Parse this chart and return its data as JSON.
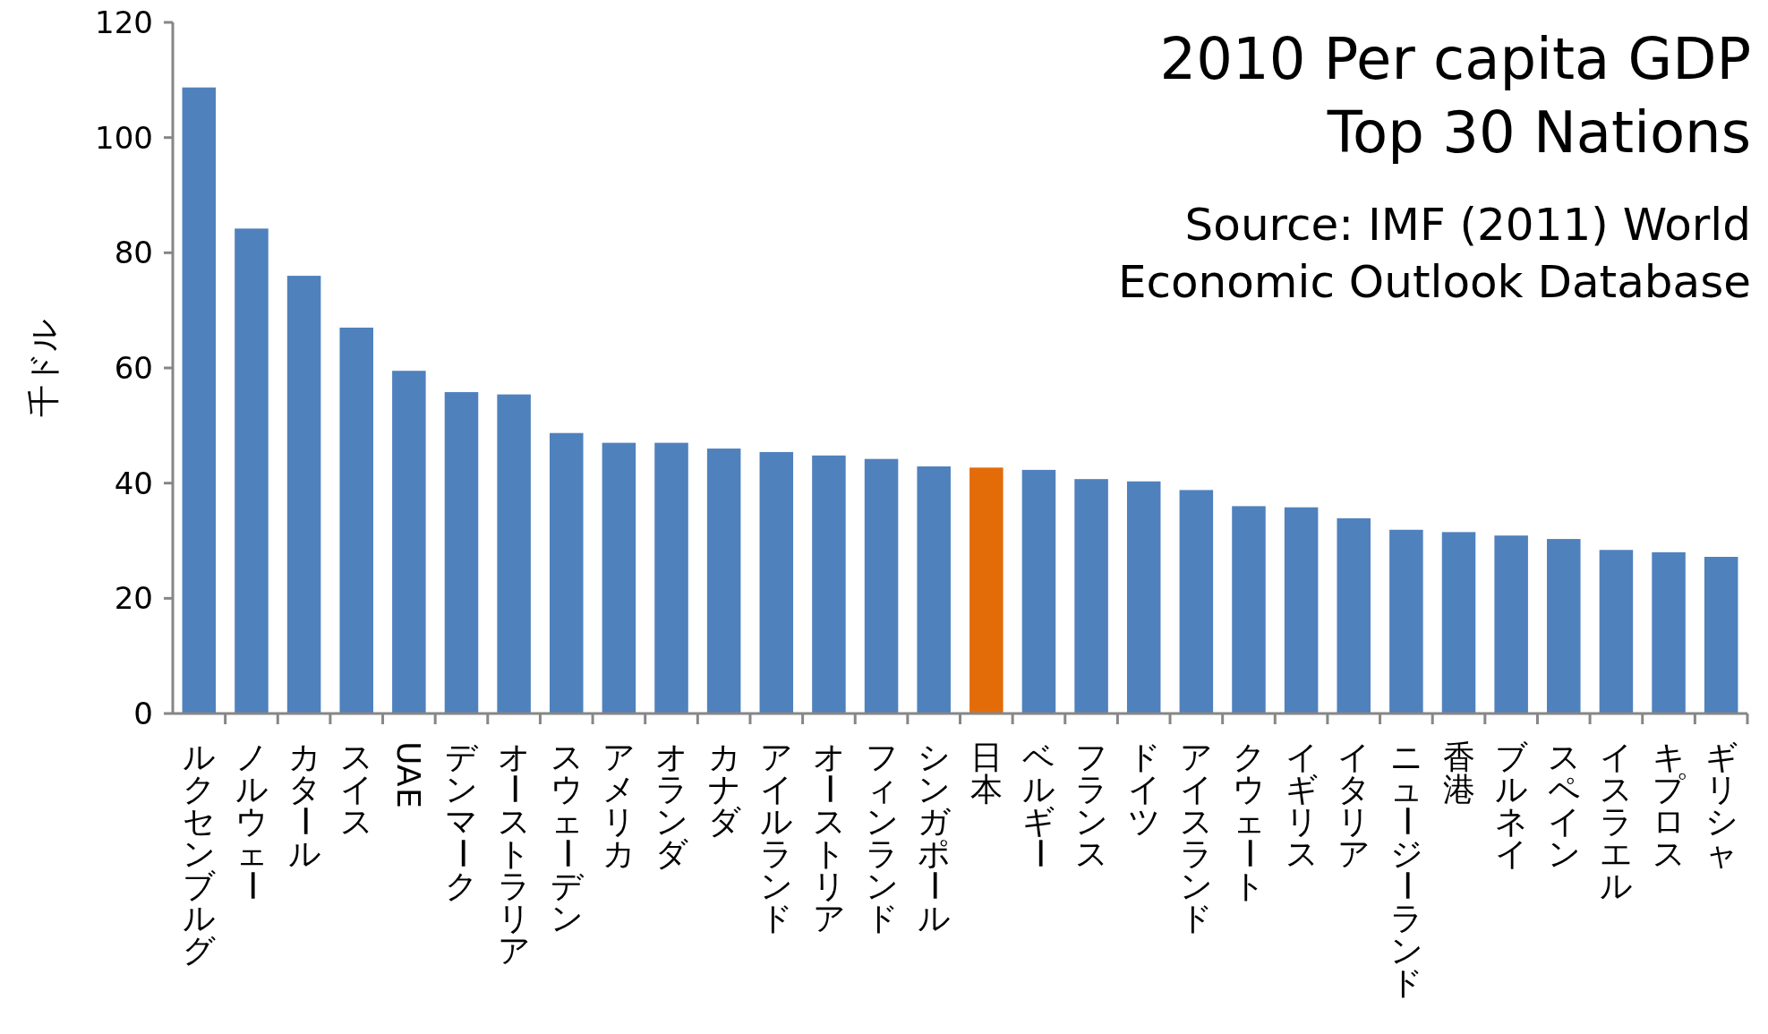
{
  "chart_data": {
    "type": "bar",
    "title": "2010 Per capita GDP Top 30 Nations",
    "ylabel": "千ドル",
    "annotations": [
      "Source: IMF (2011) World Economic Outlook Database"
    ],
    "categories": [
      "ルクセンブルグ",
      "ノルウェー",
      "カタール",
      "スイス",
      "UAE",
      "デンマーク",
      "オーストラリア",
      "スウェーデン",
      "アメリカ",
      "オランダ",
      "カナダ",
      "アイルランド",
      "オーストリア",
      "フィンランド",
      "シンガポール",
      "日本",
      "ベルギー",
      "フランス",
      "ドイツ",
      "アイスランド",
      "クウェート",
      "イギリス",
      "イタリア",
      "ニュージーランド",
      "香港",
      "ブルネイ",
      "スペイン",
      "イスラエル",
      "キプロス",
      "ギリシャ"
    ],
    "values": [
      108.7,
      84.2,
      76.0,
      67.0,
      59.5,
      55.8,
      55.4,
      48.7,
      47.0,
      47.0,
      46.0,
      45.4,
      44.8,
      44.2,
      42.9,
      42.7,
      42.3,
      40.7,
      40.3,
      38.8,
      36.0,
      35.8,
      33.9,
      31.9,
      31.5,
      30.9,
      30.3,
      28.4,
      28.0,
      27.2
    ],
    "colors": [
      "#4f81bd",
      "#4f81bd",
      "#4f81bd",
      "#4f81bd",
      "#4f81bd",
      "#4f81bd",
      "#4f81bd",
      "#4f81bd",
      "#4f81bd",
      "#4f81bd",
      "#4f81bd",
      "#4f81bd",
      "#4f81bd",
      "#4f81bd",
      "#4f81bd",
      "#e36c09",
      "#4f81bd",
      "#4f81bd",
      "#4f81bd",
      "#4f81bd",
      "#4f81bd",
      "#4f81bd",
      "#4f81bd",
      "#4f81bd",
      "#4f81bd",
      "#4f81bd",
      "#4f81bd",
      "#4f81bd",
      "#4f81bd",
      "#4f81bd"
    ],
    "ylim": [
      0,
      120
    ],
    "yticks": [
      0,
      20,
      40,
      60,
      80,
      100,
      120
    ],
    "grid": false
  }
}
